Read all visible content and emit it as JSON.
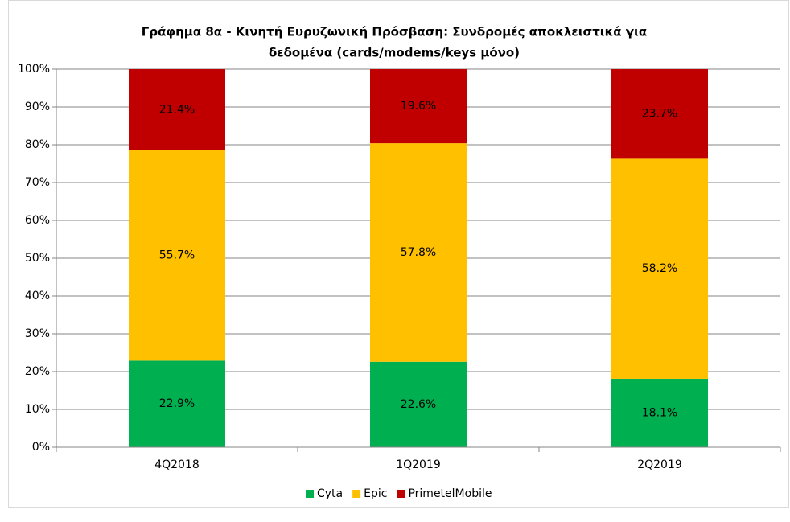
{
  "chart_data": {
    "type": "stacked_bar",
    "title": [
      "Γράφημα 8α - Κινητή Ευρυζωνική Πρόσβαση: Συνδρομές αποκλειστικά για",
      "δεδομένα (cards/modems/keys μόνο)"
    ],
    "categories": [
      "4Q2018",
      "1Q2019",
      "2Q2019"
    ],
    "series": [
      {
        "name": "Cyta",
        "color": "#00b050",
        "values": [
          22.9,
          22.6,
          18.1
        ],
        "value_labels": [
          "22.9%",
          "22.6%",
          "18.1%"
        ]
      },
      {
        "name": "Epic",
        "color": "#ffc000",
        "values": [
          55.7,
          57.8,
          58.2
        ],
        "value_labels": [
          "55.7%",
          "57.8%",
          "58.2%"
        ]
      },
      {
        "name": "PrimetelMobile",
        "color": "#c00000",
        "values": [
          21.4,
          19.6,
          23.7
        ],
        "value_labels": [
          "21.4%",
          "19.6%",
          "23.7%"
        ]
      }
    ],
    "ylim": [
      0,
      100
    ],
    "yticks": [
      {
        "value": 0,
        "label": "0%"
      },
      {
        "value": 10,
        "label": "10%"
      },
      {
        "value": 20,
        "label": "20%"
      },
      {
        "value": 30,
        "label": "30%"
      },
      {
        "value": 40,
        "label": "40%"
      },
      {
        "value": 50,
        "label": "50%"
      },
      {
        "value": 60,
        "label": "60%"
      },
      {
        "value": 70,
        "label": "70%"
      },
      {
        "value": 80,
        "label": "80%"
      },
      {
        "value": 90,
        "label": "90%"
      },
      {
        "value": 100,
        "label": "100%"
      }
    ],
    "grid": true,
    "legend": "bottom"
  }
}
